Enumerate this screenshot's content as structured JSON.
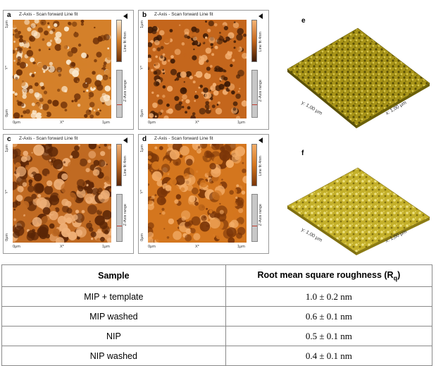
{
  "panels": [
    {
      "letter": "a",
      "title": "Z-Axis - Scan forward   Line fit",
      "y_top": "1μm",
      "y_mid": "Y*",
      "y_bottom": "0μm",
      "x_left": "0μm",
      "x_mid": "X*",
      "x_right": "1μm",
      "colorbar_label": "Line fit 4nm",
      "range_label": "Z-Axis range",
      "colors": {
        "dark": "#6b2e06",
        "mid": "#d4802a",
        "light": "#fbe9cf"
      }
    },
    {
      "letter": "b",
      "title": "Z-Axis - Scan forward   Line fit",
      "y_top": "1μm",
      "y_mid": "Y*",
      "y_bottom": "0μm",
      "x_left": "0μm",
      "x_mid": "X*",
      "x_right": "1μm",
      "colorbar_label": "Line fit 4nm",
      "range_label": "Z-Axis range",
      "colors": {
        "dark": "#3d1a05",
        "mid": "#c4661c",
        "light": "#f4b274"
      }
    },
    {
      "letter": "c",
      "title": "Z-Axis - Scan forward   Line fit",
      "y_top": "1μm",
      "y_mid": "Y*",
      "y_bottom": "0μm",
      "x_left": "0μm",
      "x_mid": "X*",
      "x_right": "1μm",
      "colorbar_label": "Line fit 4nm",
      "range_label": "Z-Axis range",
      "colors": {
        "dark": "#5a2506",
        "mid": "#c06a22",
        "light": "#f0b27a"
      }
    },
    {
      "letter": "d",
      "title": "Z-Axis - Scan forward   Line fit",
      "y_top": "1μm",
      "y_mid": "Y*",
      "y_bottom": "0μm",
      "x_left": "0μm",
      "x_mid": "X*",
      "x_right": "1μm",
      "colorbar_label": "Line fit 4nm",
      "range_label": "Z-Axis range",
      "colors": {
        "dark": "#7a3508",
        "mid": "#d4761e",
        "light": "#f3ad68"
      }
    }
  ],
  "surfaces": [
    {
      "letter": "e",
      "y_axis": "y: 1,00 μm",
      "x_axis": "x: 1,00 μm",
      "colors": {
        "dark": "#6b6008",
        "mid": "#a89418",
        "light": "#d8c850"
      }
    },
    {
      "letter": "f",
      "y_axis": "y: 1,00 μm",
      "x_axis": "x: 1,00 μm",
      "colors": {
        "dark": "#807010",
        "mid": "#c4b02a",
        "light": "#ece080"
      }
    }
  ],
  "table": {
    "header_sample": "Sample",
    "header_roughness": "Root mean square roughness (R",
    "header_sub": "q",
    "header_close": ")",
    "rows": [
      {
        "sample": "MIP + template",
        "value": "1.0 ± 0.2 nm"
      },
      {
        "sample": "MIP washed",
        "value": "0.6 ± 0.1 nm"
      },
      {
        "sample": "NIP",
        "value": "0.5 ± 0.1 nm"
      },
      {
        "sample": "NIP washed",
        "value": "0.4 ± 0.1 nm"
      }
    ]
  }
}
